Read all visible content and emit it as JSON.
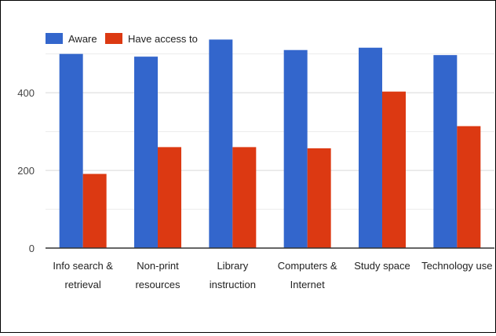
{
  "chart_data": {
    "type": "bar",
    "categories": [
      [
        "Info search &",
        "retrieval"
      ],
      [
        "Non-print",
        "resources"
      ],
      [
        "Library",
        "instruction"
      ],
      [
        "Computers &",
        "Internet"
      ],
      [
        "Study space"
      ],
      [
        "Technology use"
      ]
    ],
    "series": [
      {
        "name": "Aware",
        "color": "#3366cc",
        "values": [
          500,
          493,
          537,
          510,
          516,
          497
        ]
      },
      {
        "name": "Have access to",
        "color": "#dc3912",
        "values": [
          191,
          260,
          260,
          257,
          403,
          314
        ]
      }
    ],
    "y_ticks": [
      0,
      200,
      400
    ],
    "ylim": [
      0,
      560
    ],
    "grid": true,
    "legend_position": "top-left"
  }
}
